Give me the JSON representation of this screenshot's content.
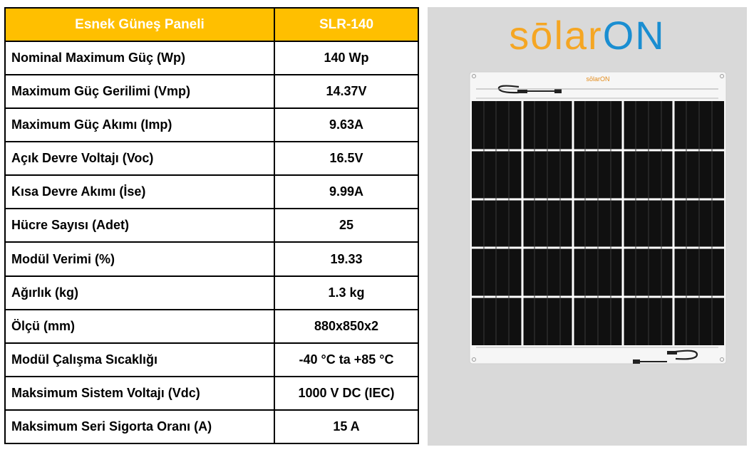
{
  "table": {
    "header": {
      "label": "Esnek Güneş Paneli",
      "value": "SLR-140"
    },
    "rows": [
      {
        "label": "Nominal Maximum Güç (Wp)",
        "value": "140 Wp"
      },
      {
        "label": "Maximum Güç Gerilimi (Vmp)",
        "value": "14.37V"
      },
      {
        "label": "Maximum Güç Akımı (Imp)",
        "value": "9.63A"
      },
      {
        "label": "Açık Devre Voltajı (Voc)",
        "value": "16.5V"
      },
      {
        "label": "Kısa Devre Akımı (İse)",
        "value": "9.99A"
      },
      {
        "label": "Hücre Sayısı (Adet)",
        "value": "25"
      },
      {
        "label": "Modül Verimi (%)",
        "value": "19.33"
      },
      {
        "label": "Ağırlık (kg)",
        "value": "1.3 kg"
      },
      {
        "label": "Ölçü (mm)",
        "value": "880x850x2"
      },
      {
        "label": "Modül Çalışma Sıcaklığı",
        "value": "-40 °C ta +85 °C"
      },
      {
        "label": "Maksimum Sistem Voltajı (Vdc)",
        "value": "1000 V DC (IEC)"
      },
      {
        "label": "Maksimum Seri Sigorta Oranı (A)",
        "value": "15 A"
      }
    ]
  },
  "product": {
    "logo_part1": "sōlar",
    "logo_part2": "ON",
    "small_logo": "sōlarON",
    "colors": {
      "header": "#ffbf00",
      "logo_orange": "#f5a623",
      "logo_blue": "#1a8ed1",
      "panel_bg": "#d9d9d9"
    }
  }
}
